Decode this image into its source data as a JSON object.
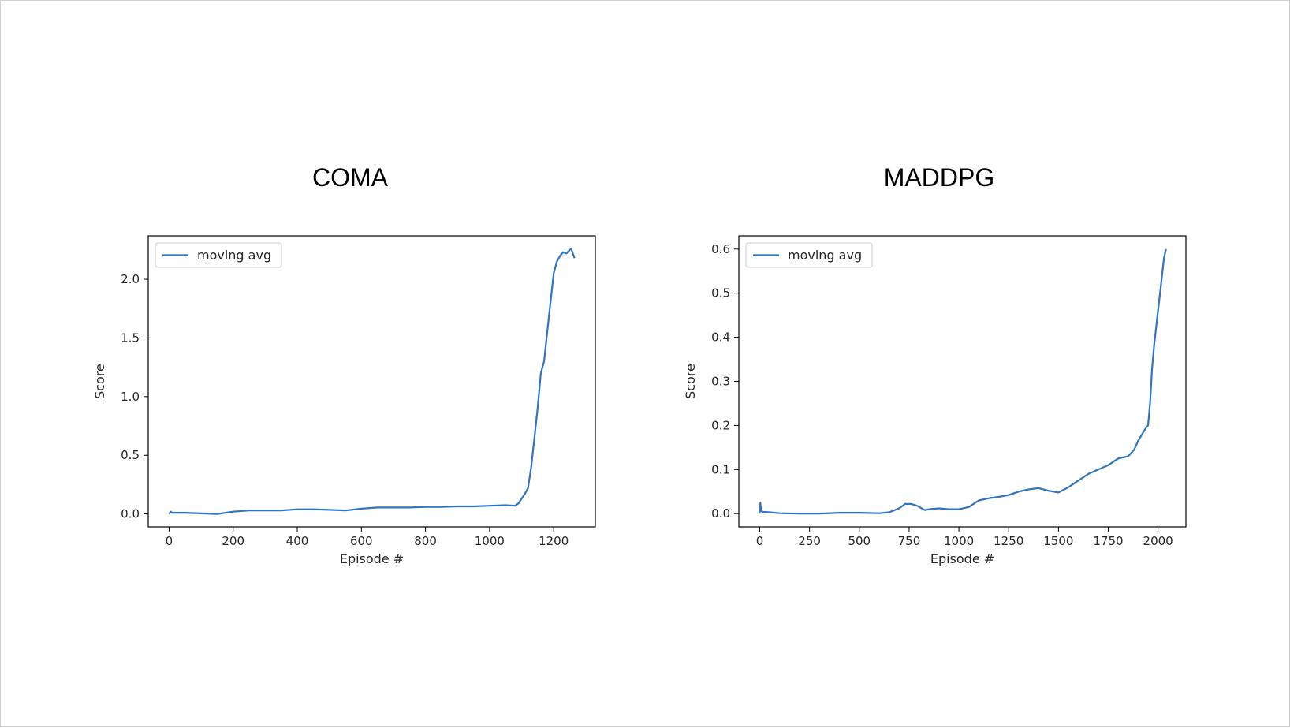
{
  "chart_data": [
    {
      "type": "line",
      "title": "COMA",
      "xlabel": "Episode #",
      "ylabel": "Score",
      "xlim": [
        -65,
        1330
      ],
      "ylim": [
        -0.11,
        2.37
      ],
      "xticks": [
        0,
        200,
        400,
        600,
        800,
        1000,
        1200
      ],
      "yticks": [
        0.0,
        0.5,
        1.0,
        1.5,
        2.0
      ],
      "ytick_labels": [
        "0.0",
        "0.5",
        "1.0",
        "1.5",
        "2.0"
      ],
      "legend": "upper-left",
      "grid": false,
      "color": "#3274c1",
      "series": [
        {
          "name": "moving avg",
          "x": [
            0,
            5,
            10,
            20,
            50,
            100,
            150,
            200,
            250,
            300,
            350,
            400,
            450,
            500,
            550,
            600,
            650,
            700,
            750,
            800,
            850,
            900,
            950,
            1000,
            1050,
            1080,
            1090,
            1100,
            1110,
            1120,
            1130,
            1140,
            1150,
            1160,
            1170,
            1180,
            1190,
            1200,
            1210,
            1220,
            1230,
            1240,
            1250,
            1255,
            1260,
            1265
          ],
          "y": [
            0.0,
            0.02,
            0.01,
            0.01,
            0.01,
            0.005,
            0.0,
            0.02,
            0.03,
            0.03,
            0.03,
            0.04,
            0.04,
            0.035,
            0.03,
            0.045,
            0.055,
            0.055,
            0.055,
            0.06,
            0.06,
            0.065,
            0.065,
            0.07,
            0.075,
            0.07,
            0.09,
            0.13,
            0.17,
            0.22,
            0.4,
            0.65,
            0.9,
            1.2,
            1.3,
            1.55,
            1.8,
            2.05,
            2.15,
            2.2,
            2.23,
            2.22,
            2.25,
            2.26,
            2.22,
            2.18
          ]
        }
      ]
    },
    {
      "type": "line",
      "title": "MADDPG",
      "xlabel": "Episode #",
      "ylabel": "Score",
      "xlim": [
        -105,
        2140
      ],
      "ylim": [
        -0.03,
        0.63
      ],
      "xticks": [
        0,
        250,
        500,
        750,
        1000,
        1250,
        1500,
        1750,
        2000
      ],
      "yticks": [
        0.0,
        0.1,
        0.2,
        0.3,
        0.4,
        0.5,
        0.6
      ],
      "ytick_labels": [
        "0.0",
        "0.1",
        "0.2",
        "0.3",
        "0.4",
        "0.5",
        "0.6"
      ],
      "legend": "upper-left",
      "grid": false,
      "color": "#3274c1",
      "series": [
        {
          "name": "moving avg",
          "x": [
            0,
            3,
            6,
            10,
            20,
            50,
            100,
            200,
            300,
            400,
            500,
            600,
            650,
            700,
            730,
            760,
            790,
            830,
            850,
            900,
            950,
            1000,
            1050,
            1100,
            1150,
            1200,
            1250,
            1300,
            1350,
            1400,
            1450,
            1500,
            1550,
            1600,
            1650,
            1700,
            1750,
            1800,
            1850,
            1880,
            1900,
            1920,
            1940,
            1950,
            1960,
            1970,
            1980,
            1990,
            2000,
            2010,
            2020,
            2030,
            2040
          ],
          "y": [
            0.0,
            0.025,
            0.01,
            0.005,
            0.004,
            0.003,
            0.001,
            0.0,
            0.0,
            0.002,
            0.002,
            0.001,
            0.003,
            0.012,
            0.022,
            0.022,
            0.018,
            0.008,
            0.01,
            0.012,
            0.01,
            0.01,
            0.015,
            0.03,
            0.035,
            0.038,
            0.042,
            0.05,
            0.055,
            0.058,
            0.052,
            0.048,
            0.06,
            0.075,
            0.09,
            0.1,
            0.11,
            0.125,
            0.13,
            0.145,
            0.165,
            0.18,
            0.195,
            0.2,
            0.25,
            0.33,
            0.38,
            0.42,
            0.46,
            0.5,
            0.54,
            0.58,
            0.6
          ]
        }
      ]
    }
  ]
}
